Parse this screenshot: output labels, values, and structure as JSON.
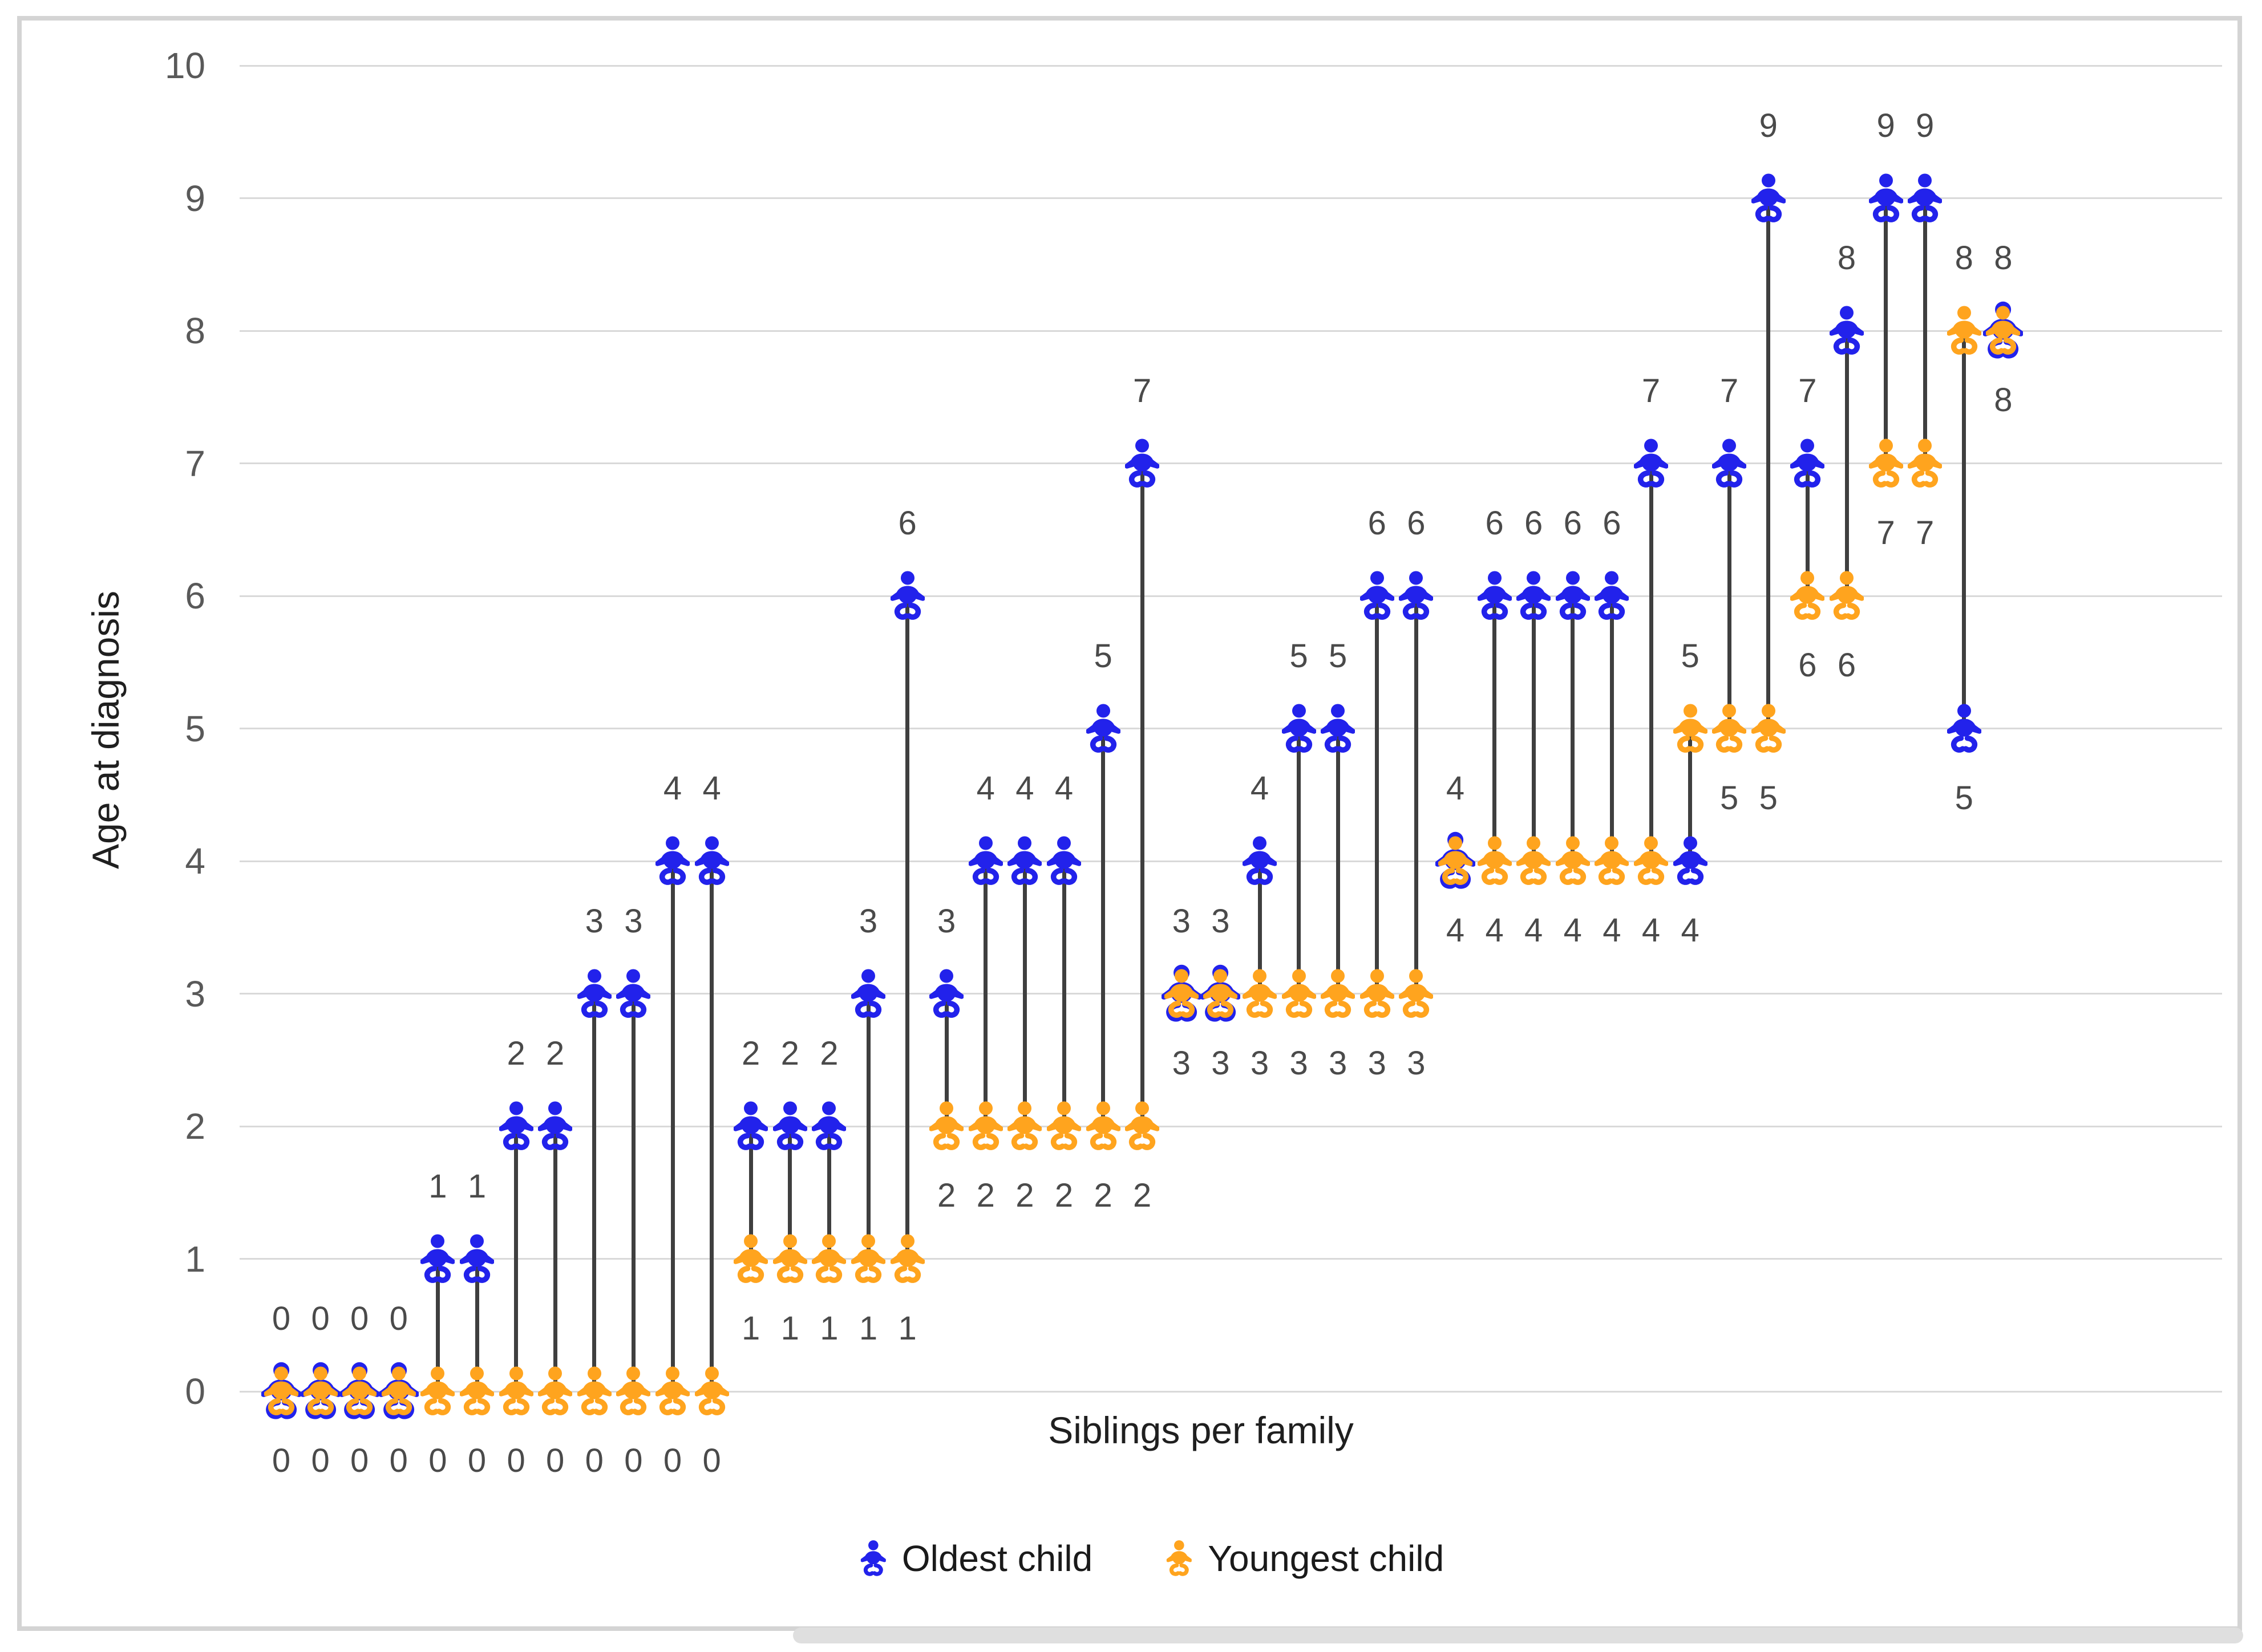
{
  "chart_data": {
    "type": "scatter",
    "subtype": "dumbbell",
    "title": "",
    "xlabel": "Siblings per family",
    "ylabel": "Age at diagnosis",
    "ylim": [
      0,
      10
    ],
    "y_ticks": [
      0,
      1,
      2,
      3,
      4,
      5,
      6,
      7,
      8,
      9,
      10
    ],
    "x_tick_labels": [],
    "grid": true,
    "data_labels": "above oldest/upper point and below youngest/lower point",
    "legend_position": "bottom",
    "marker_glyph": "baby-icon",
    "series": [
      {
        "name": "Oldest child",
        "color": "#2222eb",
        "values": [
          0,
          0,
          0,
          0,
          1,
          1,
          2,
          2,
          3,
          3,
          4,
          4,
          2,
          2,
          2,
          3,
          6,
          3,
          4,
          4,
          4,
          5,
          7,
          3,
          3,
          4,
          5,
          5,
          6,
          6,
          4,
          6,
          6,
          6,
          6,
          7,
          4,
          7,
          9,
          7,
          8,
          9,
          9,
          5,
          8
        ]
      },
      {
        "name": "Youngest child",
        "color": "#ffa41e",
        "values": [
          0,
          0,
          0,
          0,
          0,
          0,
          0,
          0,
          0,
          0,
          0,
          0,
          1,
          1,
          1,
          1,
          1,
          2,
          2,
          2,
          2,
          2,
          2,
          3,
          3,
          3,
          3,
          3,
          3,
          3,
          4,
          4,
          4,
          4,
          4,
          4,
          5,
          5,
          5,
          6,
          6,
          7,
          7,
          8,
          8
        ]
      }
    ],
    "families_count": 45
  },
  "legend": {
    "oldest_label": "Oldest child",
    "youngest_label": "Youngest child"
  },
  "axes": {
    "y_title": "Age at diagnosis",
    "x_title": "Siblings per family"
  },
  "colors": {
    "oldest": "#2222eb",
    "youngest": "#ffa41e",
    "connector": "#3f3f3f",
    "gridline": "#d9d9d9",
    "tick_text": "#595959",
    "data_label_text": "#4a4a4a",
    "frame_border": "#d4d4d4"
  }
}
